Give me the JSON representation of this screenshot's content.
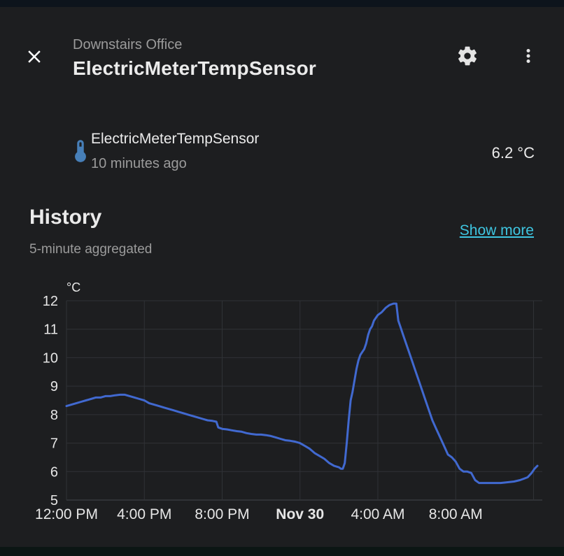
{
  "header": {
    "subtitle": "Downstairs Office",
    "title": "ElectricMeterTempSensor"
  },
  "entity": {
    "name": "ElectricMeterTempSensor",
    "last_changed": "10 minutes ago",
    "state": "6.2 °C"
  },
  "history": {
    "title": "History",
    "show_more": "Show more",
    "subtitle": "5-minute aggregated"
  },
  "icons": {
    "close": "close-icon",
    "settings": "gear-icon",
    "menu": "dots-vertical-icon",
    "entity": "thermometer-icon"
  },
  "colors": {
    "accent": "#3ec5e0",
    "line": "#4169d0",
    "entity_icon": "#477fb8",
    "grid": "#303236",
    "axis": "#43464b",
    "tick": "#e6e6e6"
  },
  "chart_data": {
    "type": "line",
    "title": "History",
    "unit": "°C",
    "ylim": [
      5,
      12
    ],
    "yticks": [
      5,
      6,
      7,
      8,
      9,
      10,
      11,
      12
    ],
    "xlim": [
      0,
      24.45
    ],
    "x_axis_note": "x is hours since 12:00 PM Nov 29",
    "grid": true,
    "legend": "none",
    "xticks": [
      {
        "x": 0,
        "label": "12:00 PM",
        "bold": false
      },
      {
        "x": 4,
        "label": "4:00 PM",
        "bold": false
      },
      {
        "x": 8,
        "label": "8:00 PM",
        "bold": false
      },
      {
        "x": 12,
        "label": "Nov 30",
        "bold": true
      },
      {
        "x": 16,
        "label": "4:00 AM",
        "bold": false
      },
      {
        "x": 20,
        "label": "8:00 AM",
        "bold": false
      },
      {
        "x": 24,
        "label": "",
        "bold": false
      }
    ],
    "series": [
      {
        "name": "ElectricMeterTempSensor",
        "color": "#4169d0",
        "points": [
          [
            0,
            8.3
          ],
          [
            0.25,
            8.35
          ],
          [
            0.5,
            8.4
          ],
          [
            0.75,
            8.45
          ],
          [
            1,
            8.5
          ],
          [
            1.25,
            8.55
          ],
          [
            1.5,
            8.6
          ],
          [
            1.75,
            8.6
          ],
          [
            2,
            8.65
          ],
          [
            2.25,
            8.65
          ],
          [
            2.5,
            8.68
          ],
          [
            2.75,
            8.7
          ],
          [
            3,
            8.7
          ],
          [
            3.25,
            8.65
          ],
          [
            3.5,
            8.6
          ],
          [
            3.75,
            8.55
          ],
          [
            4,
            8.5
          ],
          [
            4.25,
            8.4
          ],
          [
            4.5,
            8.35
          ],
          [
            4.75,
            8.3
          ],
          [
            5,
            8.25
          ],
          [
            5.25,
            8.2
          ],
          [
            5.5,
            8.15
          ],
          [
            5.75,
            8.1
          ],
          [
            6,
            8.05
          ],
          [
            6.25,
            8.0
          ],
          [
            6.5,
            7.95
          ],
          [
            6.75,
            7.9
          ],
          [
            7,
            7.85
          ],
          [
            7.25,
            7.8
          ],
          [
            7.5,
            7.78
          ],
          [
            7.7,
            7.75
          ],
          [
            7.8,
            7.55
          ],
          [
            8,
            7.5
          ],
          [
            8.25,
            7.48
          ],
          [
            8.5,
            7.45
          ],
          [
            8.75,
            7.42
          ],
          [
            9,
            7.4
          ],
          [
            9.25,
            7.35
          ],
          [
            9.5,
            7.32
          ],
          [
            9.75,
            7.3
          ],
          [
            10,
            7.3
          ],
          [
            10.25,
            7.28
          ],
          [
            10.5,
            7.25
          ],
          [
            10.75,
            7.2
          ],
          [
            11,
            7.15
          ],
          [
            11.25,
            7.1
          ],
          [
            11.5,
            7.08
          ],
          [
            11.75,
            7.05
          ],
          [
            12,
            7.0
          ],
          [
            12.25,
            6.9
          ],
          [
            12.5,
            6.8
          ],
          [
            12.75,
            6.65
          ],
          [
            13,
            6.55
          ],
          [
            13.25,
            6.45
          ],
          [
            13.5,
            6.3
          ],
          [
            13.75,
            6.2
          ],
          [
            14,
            6.15
          ],
          [
            14.1,
            6.1
          ],
          [
            14.2,
            6.1
          ],
          [
            14.3,
            6.3
          ],
          [
            14.4,
            7.0
          ],
          [
            14.5,
            7.8
          ],
          [
            14.6,
            8.5
          ],
          [
            14.7,
            8.8
          ],
          [
            14.8,
            9.2
          ],
          [
            14.9,
            9.6
          ],
          [
            15,
            9.9
          ],
          [
            15.1,
            10.1
          ],
          [
            15.2,
            10.2
          ],
          [
            15.3,
            10.3
          ],
          [
            15.4,
            10.5
          ],
          [
            15.5,
            10.8
          ],
          [
            15.6,
            11.0
          ],
          [
            15.7,
            11.1
          ],
          [
            15.8,
            11.3
          ],
          [
            15.9,
            11.4
          ],
          [
            16,
            11.5
          ],
          [
            16.2,
            11.6
          ],
          [
            16.4,
            11.75
          ],
          [
            16.6,
            11.85
          ],
          [
            16.8,
            11.9
          ],
          [
            16.95,
            11.9
          ],
          [
            17.05,
            11.3
          ],
          [
            17.15,
            11.1
          ],
          [
            17.3,
            10.8
          ],
          [
            17.45,
            10.5
          ],
          [
            17.6,
            10.2
          ],
          [
            17.75,
            9.9
          ],
          [
            17.9,
            9.6
          ],
          [
            18.05,
            9.3
          ],
          [
            18.2,
            9.0
          ],
          [
            18.4,
            8.6
          ],
          [
            18.6,
            8.2
          ],
          [
            18.8,
            7.8
          ],
          [
            19,
            7.5
          ],
          [
            19.2,
            7.2
          ],
          [
            19.4,
            6.9
          ],
          [
            19.6,
            6.6
          ],
          [
            19.8,
            6.5
          ],
          [
            20,
            6.35
          ],
          [
            20.2,
            6.1
          ],
          [
            20.4,
            6.0
          ],
          [
            20.6,
            6.0
          ],
          [
            20.8,
            5.95
          ],
          [
            21,
            5.7
          ],
          [
            21.2,
            5.6
          ],
          [
            21.5,
            5.6
          ],
          [
            22,
            5.6
          ],
          [
            22.3,
            5.6
          ],
          [
            22.6,
            5.62
          ],
          [
            23,
            5.65
          ],
          [
            23.3,
            5.7
          ],
          [
            23.5,
            5.75
          ],
          [
            23.7,
            5.8
          ],
          [
            23.9,
            5.95
          ],
          [
            24.05,
            6.1
          ],
          [
            24.2,
            6.2
          ]
        ]
      }
    ]
  }
}
